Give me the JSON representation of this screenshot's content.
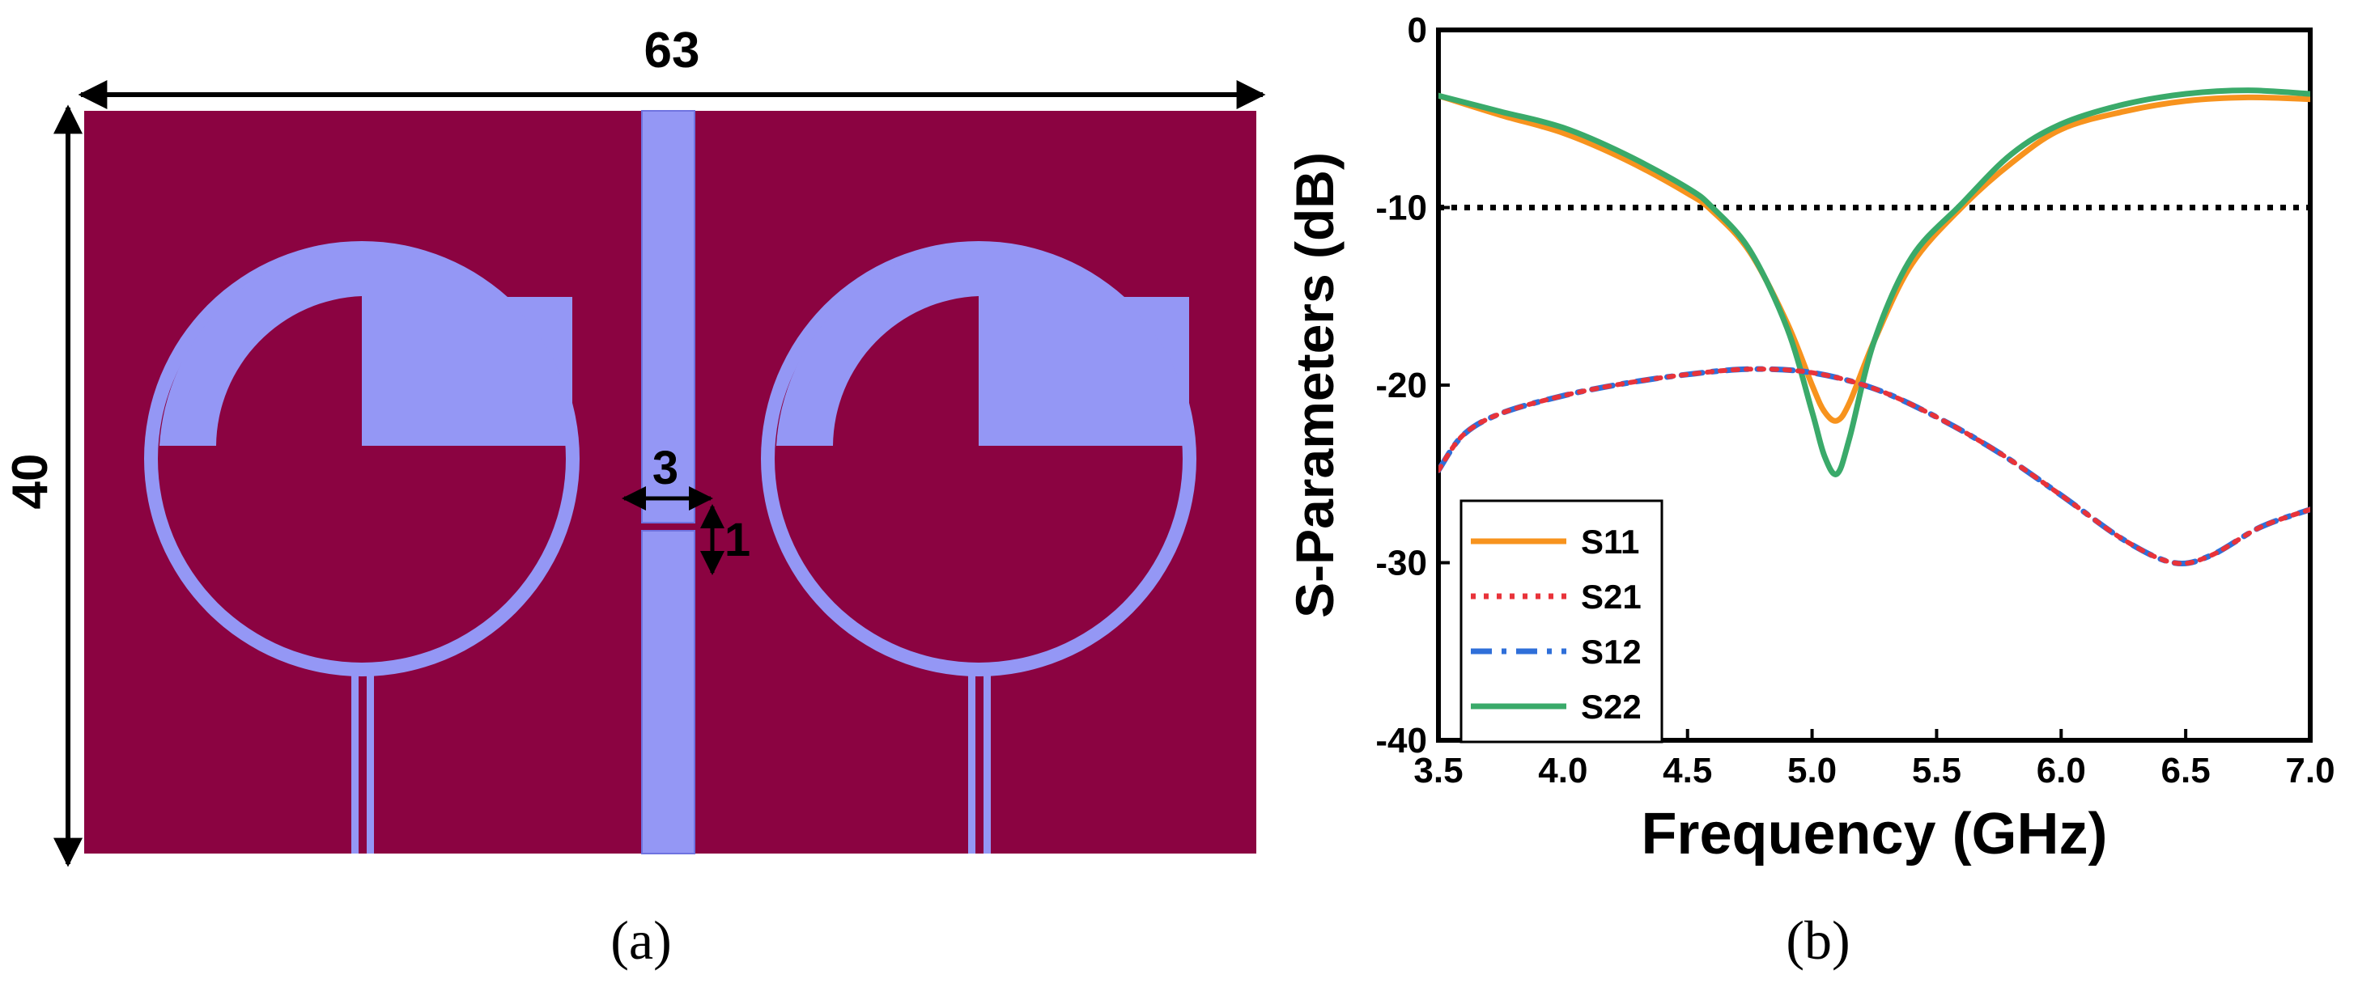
{
  "panel_a": {
    "caption": "(a)",
    "dimensions": {
      "width_label": "63",
      "height_label": "40",
      "gap_width_label": "3",
      "gap_height_label": "1"
    },
    "colors": {
      "substrate": "#8B0341",
      "metal": "#9497F5",
      "metal_edge": "#6f73e0"
    }
  },
  "panel_b": {
    "caption": "(b)"
  },
  "chart_data": {
    "type": "line",
    "title": "",
    "xlabel": "Frequency (GHz)",
    "ylabel": "S-Parameters (dB)",
    "xlim": [
      3.5,
      7.0
    ],
    "ylim": [
      -40,
      0
    ],
    "xticks": [
      3.5,
      4.0,
      4.5,
      5.0,
      5.5,
      6.0,
      6.5,
      7.0
    ],
    "xtick_labels": [
      "3.5",
      "4.0",
      "4.5",
      "5.0",
      "5.5",
      "6.0",
      "6.5",
      "7.0"
    ],
    "yticks": [
      0,
      -10,
      -20,
      -30,
      -40
    ],
    "ytick_labels": [
      "0",
      "-10",
      "-20",
      "-30",
      "-40"
    ],
    "grid": false,
    "legend_position": "bottom-left",
    "reference_line": {
      "y": -10,
      "style": "dotted",
      "color": "#000000"
    },
    "series": [
      {
        "name": "S11",
        "color": "#F7931E",
        "style": "solid",
        "x": [
          3.5,
          3.75,
          4.0,
          4.25,
          4.5,
          4.6,
          4.75,
          4.9,
          5.0,
          5.05,
          5.1,
          5.15,
          5.25,
          5.4,
          5.6,
          5.8,
          6.0,
          6.25,
          6.5,
          6.75,
          7.0
        ],
        "y": [
          -3.7,
          -4.8,
          -5.8,
          -7.3,
          -9.2,
          -10.2,
          -12.5,
          -16.5,
          -20.0,
          -21.5,
          -22.0,
          -21.0,
          -17.5,
          -13.2,
          -10.0,
          -7.5,
          -5.6,
          -4.6,
          -4.0,
          -3.8,
          -3.9
        ]
      },
      {
        "name": "S21",
        "color": "#E8333A",
        "style": "dotted",
        "x": [
          3.5,
          3.6,
          3.75,
          4.0,
          4.25,
          4.5,
          4.75,
          5.0,
          5.25,
          5.5,
          5.75,
          6.0,
          6.25,
          6.45,
          6.6,
          6.8,
          7.0
        ],
        "y": [
          -24.8,
          -22.8,
          -21.6,
          -20.6,
          -19.9,
          -19.4,
          -19.1,
          -19.3,
          -20.2,
          -21.8,
          -23.8,
          -26.2,
          -28.7,
          -30.0,
          -29.6,
          -28.0,
          -27.0
        ]
      },
      {
        "name": "S12",
        "color": "#2F6FD9",
        "style": "dashdot",
        "x": [
          3.5,
          3.6,
          3.75,
          4.0,
          4.25,
          4.5,
          4.75,
          5.0,
          5.25,
          5.5,
          5.75,
          6.0,
          6.25,
          6.45,
          6.6,
          6.8,
          7.0
        ],
        "y": [
          -24.8,
          -22.8,
          -21.6,
          -20.6,
          -19.9,
          -19.4,
          -19.1,
          -19.3,
          -20.2,
          -21.8,
          -23.8,
          -26.2,
          -28.7,
          -30.0,
          -29.6,
          -28.0,
          -27.0
        ]
      },
      {
        "name": "S22",
        "color": "#3AAA6A",
        "style": "solid",
        "x": [
          3.5,
          3.75,
          4.0,
          4.25,
          4.5,
          4.6,
          4.75,
          4.9,
          5.0,
          5.05,
          5.1,
          5.15,
          5.25,
          5.4,
          5.6,
          5.8,
          6.0,
          6.25,
          6.5,
          6.75,
          7.0
        ],
        "y": [
          -3.7,
          -4.6,
          -5.5,
          -7.0,
          -8.9,
          -10.0,
          -12.4,
          -16.8,
          -21.5,
          -24.0,
          -25.0,
          -23.0,
          -17.5,
          -12.8,
          -9.8,
          -7.0,
          -5.3,
          -4.2,
          -3.6,
          -3.4,
          -3.6
        ]
      }
    ]
  }
}
